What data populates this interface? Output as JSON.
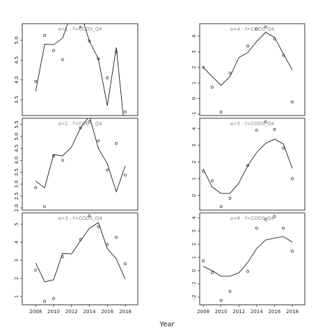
{
  "x_label": "Year",
  "chart_data": [
    {
      "type": "scatter",
      "title": "a=1 : f=CODS_Q4",
      "color": "#000000",
      "x": [
        2008,
        2009,
        2010,
        2011,
        2012,
        2013,
        2014,
        2015,
        2016,
        2017,
        2018
      ],
      "values": [
        3.96,
        5.12,
        4.74,
        4.51,
        null,
        5.33,
        4.98,
        4.53,
        4.05,
        4.7,
        3.19
      ],
      "fit": [
        3.71,
        4.9,
        4.89,
        5.05,
        5.7,
        5.7,
        4.98,
        4.53,
        3.35,
        4.82,
        2.6
      ],
      "xlim": [
        2006.5,
        2019.4
      ],
      "ylim": [
        3.1,
        5.42
      ],
      "yticks": [
        {
          "value": 3.5,
          "label": "3.5"
        },
        {
          "value": 4,
          "label": "4.0"
        },
        {
          "value": 4.5,
          "label": "4.5"
        },
        {
          "value": 5,
          "label": "5.0"
        }
      ]
    },
    {
      "type": "scatter",
      "title": "a=2 : f=CODS_Q4",
      "color": "#000000",
      "x": [
        2008,
        2009,
        2010,
        2011,
        2012,
        2013,
        2014,
        2015,
        2016,
        2017,
        2018
      ],
      "values": [
        2.85,
        2.06,
        4.18,
        4.0,
        null,
        5.35,
        5.62,
        4.82,
        3.59,
        4.71,
        3.38
      ],
      "fit": [
        3.12,
        2.85,
        4.24,
        4.18,
        4.56,
        5.35,
        5.85,
        4.5,
        3.85,
        2.68,
        3.76
      ],
      "xlim": [
        2006.5,
        2019.4
      ],
      "ylim": [
        1.91,
        5.76
      ],
      "yticks": [
        {
          "value": 2,
          "label": "2.0"
        },
        2.5,
        {
          "value": 3,
          "label": "3.0"
        },
        3.5,
        {
          "value": 4,
          "label": "4.0"
        },
        4.5,
        {
          "value": 5,
          "label": "5.0"
        },
        5.5
      ]
    },
    {
      "type": "scatter",
      "title": "a=3 : f=CODS_Q4",
      "color": "#000000",
      "x": [
        2008,
        2009,
        2010,
        2011,
        2012,
        2013,
        2014,
        2015,
        2016,
        2017,
        2018
      ],
      "values": [
        2.46,
        0.73,
        0.88,
        3.19,
        null,
        4.15,
        5.46,
        4.85,
        3.88,
        4.27,
        2.81
      ],
      "fit": [
        2.85,
        1.81,
        1.92,
        3.38,
        3.35,
        4.08,
        4.77,
        5.08,
        3.65,
        3.08,
        1.96
      ],
      "xlim": [
        2006.5,
        2019.4
      ],
      "ylim": [
        0.54,
        5.62
      ],
      "yticks": [
        1,
        2,
        3,
        4,
        5
      ],
      "xticks": [
        2008,
        2010,
        2012,
        2014,
        2016,
        2018
      ]
    },
    {
      "type": "scatter",
      "title": "a=4 : f=CODS_Q4",
      "color": "#000000",
      "x": [
        2008,
        2009,
        2010,
        2011,
        2012,
        2013,
        2014,
        2015,
        2016,
        2017,
        2018
      ],
      "values": [
        2.0,
        0.72,
        -0.87,
        1.63,
        null,
        3.37,
        4.45,
        4.58,
        3.82,
        2.77,
        -0.22
      ],
      "fit": [
        2.0,
        1.4,
        0.85,
        1.4,
        2.63,
        2.95,
        3.66,
        4.24,
        3.93,
        2.86,
        1.83
      ],
      "xlim": [
        2007.6,
        2019.4
      ],
      "ylim": [
        -1.09,
        4.8
      ],
      "yticks": [
        -1,
        0,
        1,
        2,
        3,
        4
      ]
    },
    {
      "type": "scatter",
      "title": "a=5 : f=CODS_Q4",
      "color": "#000000",
      "x": [
        2008,
        2009,
        2010,
        2011,
        2012,
        2013,
        2014,
        2015,
        2016,
        2017,
        2018
      ],
      "values": [
        1.45,
        0.88,
        -0.67,
        -0.17,
        null,
        1.79,
        3.9,
        4.4,
        3.95,
        2.83,
        1.0
      ],
      "fit": [
        1.58,
        0.5,
        0.12,
        0.12,
        0.75,
        1.79,
        2.58,
        3.12,
        3.37,
        3.08,
        1.62
      ],
      "xlim": [
        2007.6,
        2019.4
      ],
      "ylim": [
        -0.88,
        4.62
      ],
      "yticks": [
        0,
        1,
        2,
        3,
        4
      ]
    },
    {
      "type": "scatter",
      "title": "a=6 : f=CODS_Q4",
      "color": "#000000",
      "x": [
        2008,
        2009,
        2010,
        2011,
        2012,
        2013,
        2014,
        2015,
        2016,
        2017,
        2018
      ],
      "values": [
        0.74,
        -0.16,
        -2.26,
        -1.58,
        null,
        -0.05,
        3.21,
        3.9,
        4.1,
        3.21,
        1.47
      ],
      "fit": [
        0.32,
        0.0,
        -0.42,
        -0.42,
        -0.16,
        0.63,
        1.68,
        2.32,
        2.47,
        2.58,
        2.16
      ],
      "xlim": [
        2007.6,
        2019.4
      ],
      "ylim": [
        -2.58,
        4.37
      ],
      "yticks": [
        -2,
        -1,
        0,
        1,
        2,
        3,
        4
      ],
      "xticks": [
        2008,
        2010,
        2012,
        2014,
        2016,
        2018
      ]
    }
  ]
}
